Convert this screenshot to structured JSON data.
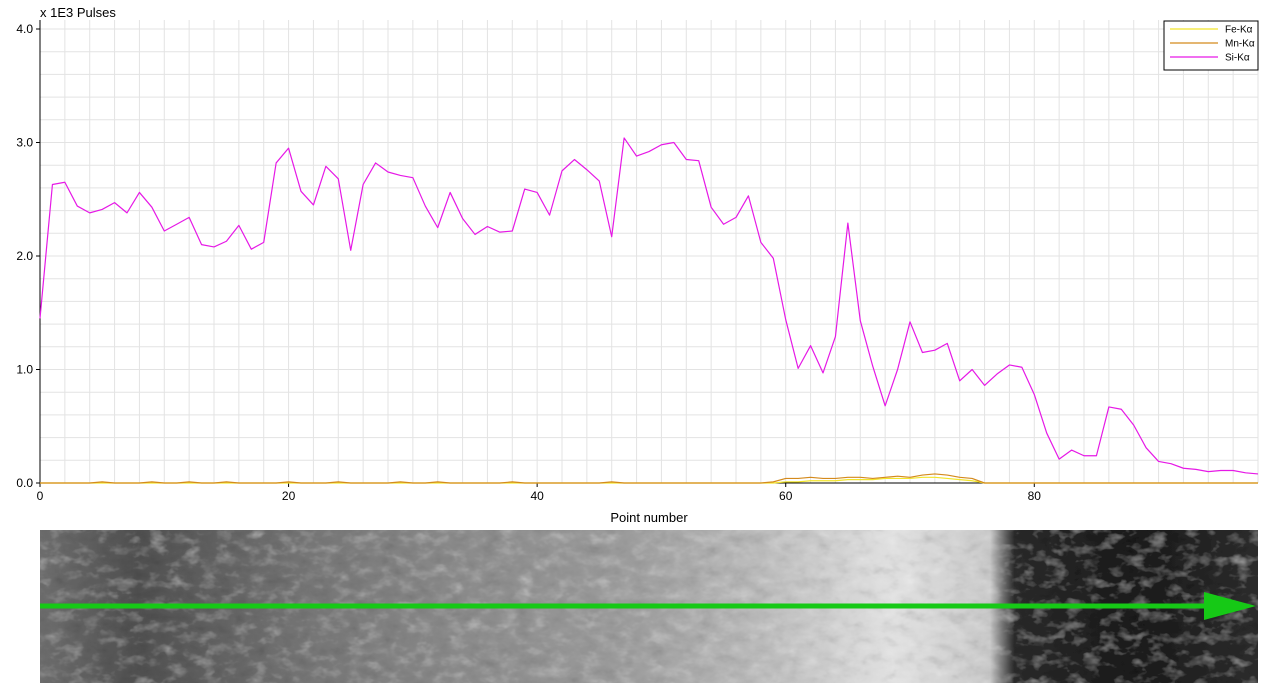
{
  "chart_data": {
    "type": "line",
    "ylabel": "x 1E3 Pulses",
    "xlabel": "Point number",
    "xlim": [
      0,
      98
    ],
    "ylim": [
      0,
      4.0
    ],
    "x_ticks": [
      0,
      20,
      40,
      60,
      80
    ],
    "y_ticks": [
      0.0,
      1.0,
      2.0,
      3.0,
      4.0
    ],
    "y_tick_labels": [
      "0.0",
      "1.0",
      "2.0",
      "3.0",
      "4.0"
    ],
    "x_minor_step": 2,
    "y_minor_step": 0.2,
    "grid": true,
    "legend_position": "top-right",
    "series": [
      {
        "name": "Fe-Kα",
        "color": "#f2e52a",
        "values": [
          0,
          0,
          0,
          0,
          0,
          0,
          0,
          0,
          0,
          0,
          0,
          0,
          0,
          0,
          0,
          0,
          0,
          0,
          0,
          0,
          0,
          0,
          0,
          0,
          0,
          0,
          0,
          0,
          0,
          0,
          0,
          0,
          0,
          0,
          0,
          0,
          0,
          0,
          0,
          0,
          0,
          0,
          0,
          0,
          0,
          0,
          0,
          0,
          0,
          0,
          0,
          0,
          0,
          0,
          0,
          0,
          0,
          0,
          0,
          0,
          0.01,
          0.01,
          0.02,
          0.02,
          0.02,
          0.03,
          0.03,
          0.03,
          0.04,
          0.04,
          0.04,
          0.05,
          0.05,
          0.04,
          0.03,
          0.02,
          0,
          0,
          0,
          0,
          0,
          0,
          0,
          0,
          0,
          0,
          0,
          0,
          0,
          0,
          0,
          0,
          0,
          0,
          0,
          0,
          0,
          0,
          0
        ]
      },
      {
        "name": "Mn-Kα",
        "color": "#d48a1c",
        "values": [
          0,
          0,
          0,
          0,
          0,
          0.01,
          0,
          0,
          0,
          0.01,
          0,
          0,
          0.01,
          0,
          0,
          0.01,
          0,
          0,
          0,
          0,
          0.01,
          0,
          0,
          0,
          0.01,
          0,
          0,
          0,
          0,
          0.01,
          0,
          0,
          0.01,
          0,
          0,
          0,
          0,
          0,
          0.01,
          0,
          0,
          0,
          0,
          0,
          0,
          0,
          0.01,
          0,
          0,
          0,
          0,
          0,
          0,
          0,
          0,
          0,
          0,
          0,
          0,
          0.01,
          0.04,
          0.04,
          0.05,
          0.04,
          0.04,
          0.05,
          0.05,
          0.04,
          0.05,
          0.06,
          0.05,
          0.07,
          0.08,
          0.07,
          0.05,
          0.04,
          0,
          0,
          0,
          0,
          0,
          0,
          0,
          0,
          0,
          0,
          0,
          0,
          0,
          0,
          0,
          0,
          0,
          0,
          0,
          0,
          0,
          0,
          0
        ]
      },
      {
        "name": "Si-Kα",
        "color": "#e619e6",
        "values": [
          1.45,
          2.63,
          2.65,
          2.44,
          2.38,
          2.41,
          2.47,
          2.38,
          2.56,
          2.43,
          2.22,
          2.28,
          2.34,
          2.1,
          2.08,
          2.13,
          2.27,
          2.06,
          2.12,
          2.82,
          2.95,
          2.57,
          2.45,
          2.79,
          2.68,
          2.05,
          2.63,
          2.82,
          2.74,
          2.71,
          2.69,
          2.44,
          2.25,
          2.56,
          2.33,
          2.19,
          2.26,
          2.21,
          2.22,
          2.59,
          2.56,
          2.36,
          2.75,
          2.85,
          2.76,
          2.66,
          2.17,
          3.04,
          2.88,
          2.92,
          2.98,
          3.0,
          2.85,
          2.84,
          2.43,
          2.28,
          2.34,
          2.53,
          2.12,
          1.98,
          1.44,
          1.01,
          1.21,
          0.97,
          1.29,
          2.29,
          1.43,
          1.03,
          0.68,
          1.0,
          1.42,
          1.15,
          1.17,
          1.23,
          0.9,
          1.0,
          0.86,
          0.96,
          1.04,
          1.02,
          0.78,
          0.44,
          0.21,
          0.29,
          0.24,
          0.24,
          0.67,
          0.65,
          0.51,
          0.31,
          0.19,
          0.17,
          0.13,
          0.12,
          0.1,
          0.11,
          0.11,
          0.09,
          0.08
        ]
      }
    ]
  },
  "image_strip": {
    "arrow_color": "#16c916"
  }
}
